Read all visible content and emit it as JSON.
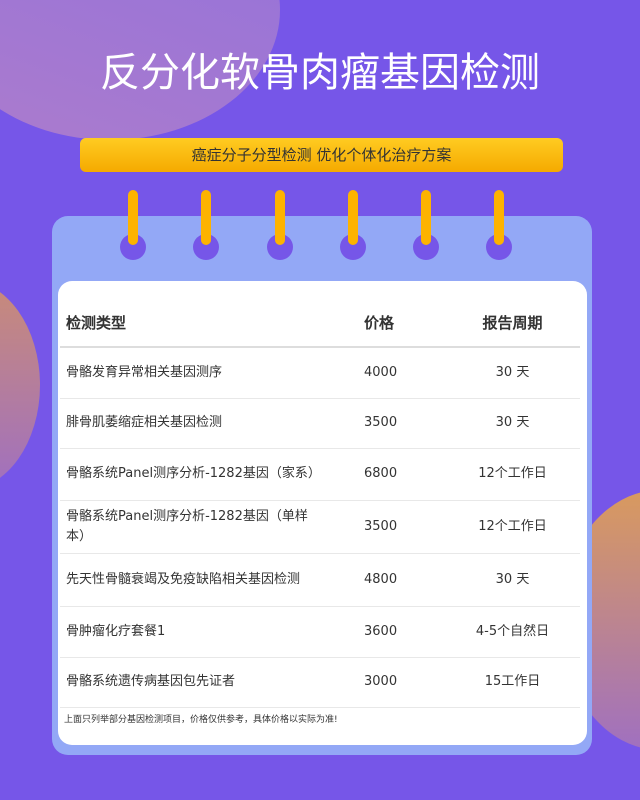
{
  "header": {
    "title": "反分化软骨肉瘤基因检测",
    "subtitle": "癌症分子分型检测 优化个体化治疗方案"
  },
  "table": {
    "headers": [
      "检测类型",
      "价格",
      "报告周期"
    ],
    "rows": [
      [
        "骨骼发育异常相关基因测序",
        "4000",
        "30 天"
      ],
      [
        "腓骨肌萎缩症相关基因检测",
        "3500",
        "30 天"
      ],
      [
        "骨骼系统Panel测序分析-1282基因（家系）",
        "6800",
        "12个工作日"
      ],
      [
        "骨骼系统Panel测序分析-1282基因（单样本）",
        "3500",
        "12个工作日"
      ],
      [
        "先天性骨髓衰竭及免疫缺陷相关基因检测",
        "4800",
        "30 天"
      ],
      [
        "骨肿瘤化疗套餐1",
        "3600",
        "4-5个自然日"
      ],
      [
        "骨骼系统遗传病基因包先证者",
        "3000",
        "15工作日"
      ]
    ],
    "note": "上面只列举部分基因检测项目，价格仅供参考，具体价格以实际为准!"
  }
}
